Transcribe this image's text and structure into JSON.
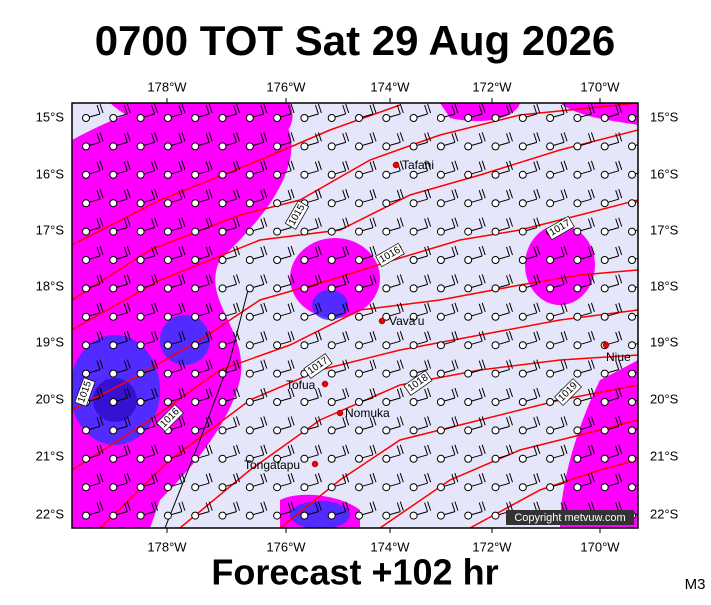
{
  "title": "0700 TOT Sat 29 Aug 2026",
  "footer": "Forecast +102 hr",
  "model": "M3",
  "copyright": "Copyright metvuw.com",
  "longitude_labels": [
    "178°W",
    "176°W",
    "174°W",
    "172°W",
    "170°W"
  ],
  "latitude_labels": [
    "15°S",
    "16°S",
    "17°S",
    "18°S",
    "19°S",
    "20°S",
    "21°S",
    "22°S"
  ],
  "places": [
    "Tafahi",
    "Vava'u",
    "Niue",
    "Tofua",
    "Nomuka",
    "Tongatapu"
  ],
  "isobar_labels": [
    "1015",
    "1016",
    "1017",
    "1015",
    "1016",
    "1017",
    "1018",
    "1019"
  ]
}
